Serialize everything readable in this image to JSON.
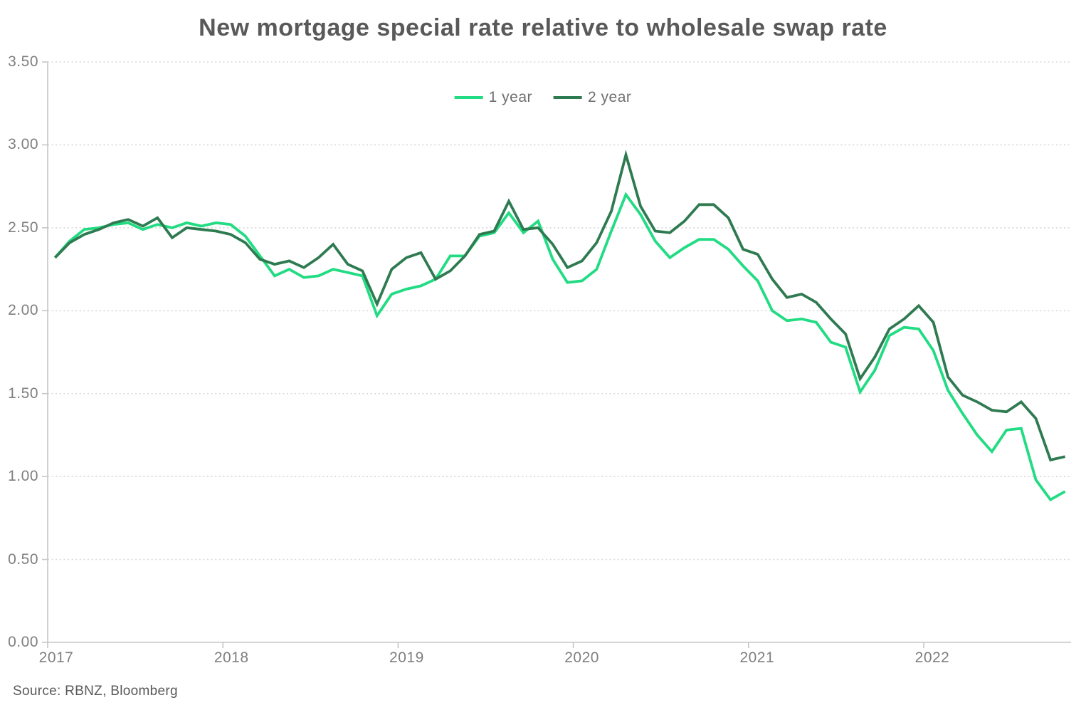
{
  "title": "New mortgage special rate relative to wholesale swap rate",
  "source": "Source: RBNZ, Bloomberg",
  "legend": {
    "items": [
      {
        "label": "1 year",
        "color": "#21DC82"
      },
      {
        "label": "2 year",
        "color": "#2F7B51"
      }
    ]
  },
  "axes": {
    "y_tick_labels": [
      "3.50",
      "3.00",
      "2.50",
      "2.00",
      "1.50",
      "1.00",
      "0.50",
      "0.00"
    ],
    "x_tick_labels": [
      "2017",
      "2018",
      "2019",
      "2020",
      "2021",
      "2022"
    ]
  },
  "colors": {
    "title_text": "#595959",
    "axis_label_text": "#7f7f7f",
    "axis_line": "#c6c6c6",
    "gridline": "#d8d8d8",
    "series_1_year": "#21DC82",
    "series_2_year": "#2F7B51"
  },
  "chart_data": {
    "type": "line",
    "title": "New mortgage special rate relative to wholesale swap rate",
    "start": "2017-01",
    "frequency": "monthly",
    "x_tick_labels": [
      "2017",
      "2018",
      "2019",
      "2020",
      "2021",
      "2022"
    ],
    "y_axis": {
      "min": 0.0,
      "max": 3.5,
      "step": 0.5
    },
    "grid": "dotted-horizontal",
    "legend_position": "top-center",
    "series": [
      {
        "name": "1 year",
        "color": "#21DC82",
        "values": [
          2.32,
          2.42,
          2.49,
          2.5,
          2.52,
          2.53,
          2.49,
          2.52,
          2.5,
          2.53,
          2.51,
          2.53,
          2.52,
          2.45,
          2.33,
          2.21,
          2.25,
          2.2,
          2.21,
          2.25,
          2.23,
          2.21,
          1.97,
          2.1,
          2.13,
          2.15,
          2.19,
          2.33,
          2.33,
          2.45,
          2.47,
          2.59,
          2.47,
          2.54,
          2.31,
          2.17,
          2.18,
          2.25,
          2.48,
          2.7,
          2.58,
          2.42,
          2.32,
          2.38,
          2.43,
          2.43,
          2.37,
          2.27,
          2.18,
          2.0,
          1.94,
          1.95,
          1.93,
          1.81,
          1.78,
          1.51,
          1.64,
          1.85,
          1.9,
          1.89,
          1.76,
          1.52,
          1.38,
          1.25,
          1.15,
          1.28,
          1.29,
          0.98,
          0.86,
          0.91
        ]
      },
      {
        "name": "2 year",
        "color": "#2F7B51",
        "values": [
          2.32,
          2.41,
          2.46,
          2.49,
          2.53,
          2.55,
          2.51,
          2.56,
          2.44,
          2.5,
          2.49,
          2.48,
          2.46,
          2.41,
          2.31,
          2.28,
          2.3,
          2.26,
          2.32,
          2.4,
          2.28,
          2.24,
          2.04,
          2.25,
          2.32,
          2.35,
          2.19,
          2.24,
          2.33,
          2.46,
          2.48,
          2.66,
          2.49,
          2.5,
          2.4,
          2.26,
          2.3,
          2.41,
          2.6,
          2.94,
          2.63,
          2.48,
          2.47,
          2.54,
          2.64,
          2.64,
          2.56,
          2.37,
          2.34,
          2.19,
          2.08,
          2.1,
          2.05,
          1.95,
          1.86,
          1.59,
          1.72,
          1.89,
          1.95,
          2.03,
          1.93,
          1.6,
          1.49,
          1.45,
          1.4,
          1.39,
          1.45,
          1.35,
          1.1,
          1.12
        ]
      }
    ]
  }
}
